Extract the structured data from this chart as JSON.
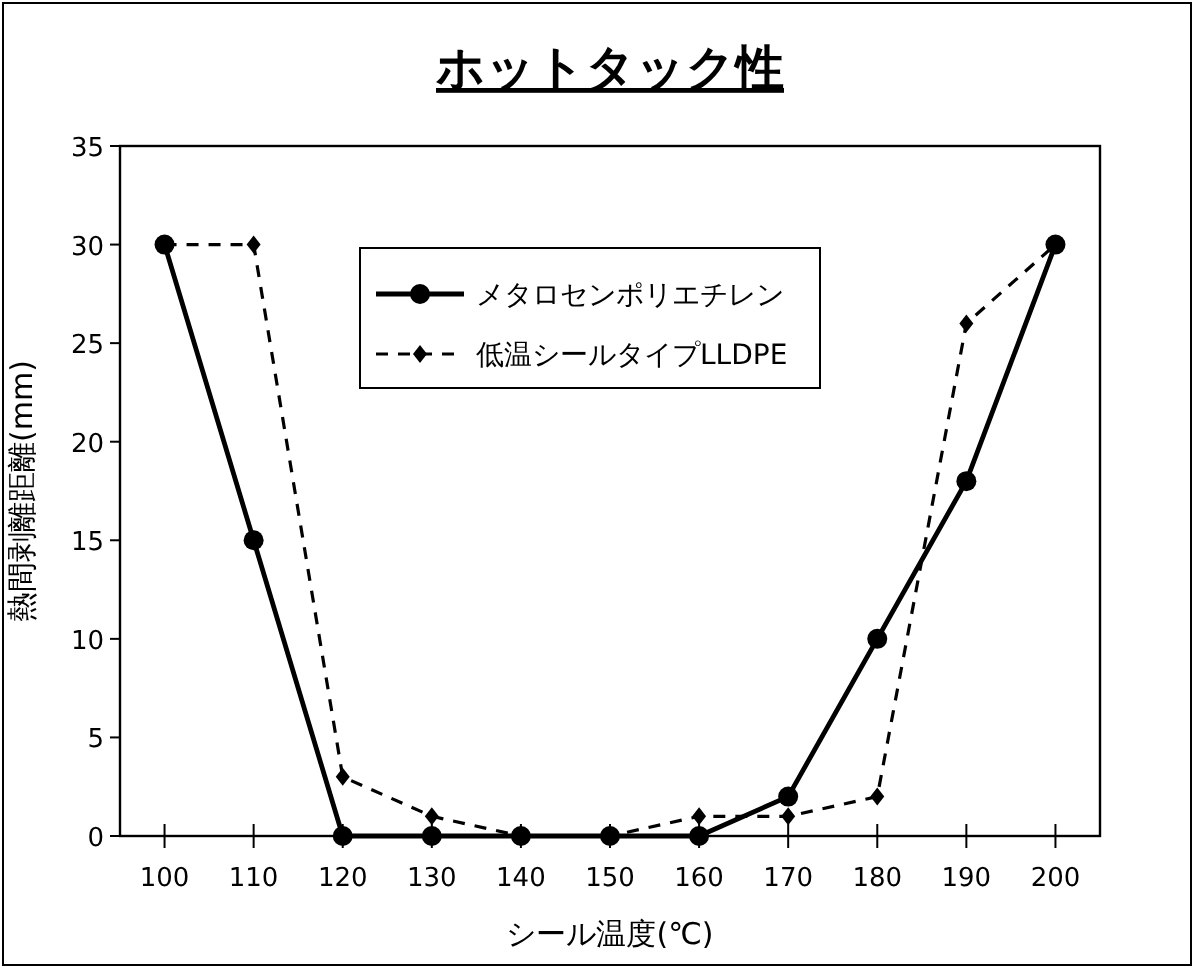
{
  "chart_data": {
    "type": "line",
    "title": "ホットタック性",
    "xlabel": "シール温度(℃)",
    "ylabel": "熱間剥離距離(mm)",
    "categories": [
      "100",
      "110",
      "120",
      "130",
      "140",
      "150",
      "160",
      "170",
      "180",
      "190",
      "200"
    ],
    "series": [
      {
        "name": "メタロセンポリエチレン",
        "color": "#000000",
        "marker": "circle",
        "line_style": "solid",
        "values": [
          30,
          15,
          0,
          0,
          0,
          0,
          0,
          2,
          10,
          18,
          30
        ]
      },
      {
        "name": "低温シールタイプLLDPE",
        "color": "#000000",
        "marker": "diamond",
        "line_style": "dashed",
        "values": [
          30,
          30,
          3,
          1,
          0,
          0,
          1,
          1,
          2,
          26,
          30
        ]
      }
    ],
    "ylim": [
      0,
      35
    ],
    "yticks": [
      0,
      5,
      10,
      15,
      20,
      25,
      30,
      35
    ],
    "grid": false,
    "legend": "top"
  }
}
